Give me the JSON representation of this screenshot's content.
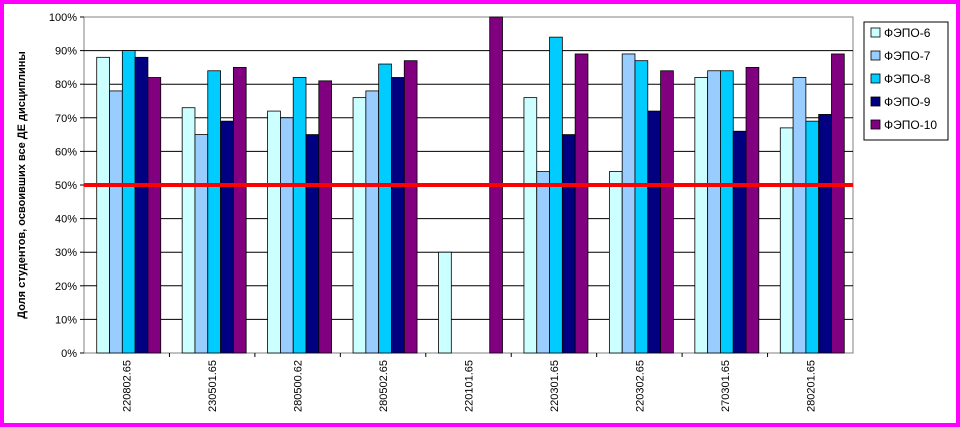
{
  "chart_data": {
    "type": "bar",
    "ylabel": "Доля студентов, освоивших все ДЕ дисциплины",
    "y_ticks": [
      "0%",
      "10%",
      "20%",
      "30%",
      "40%",
      "50%",
      "60%",
      "70%",
      "80%",
      "90%",
      "100%"
    ],
    "ylim": [
      0,
      100
    ],
    "grid": true,
    "legend_position": "right",
    "categories": [
      "220802.65",
      "230501.65",
      "280500.62",
      "280502.65",
      "220101.65",
      "220301.65",
      "220302.65",
      "270301.65",
      "280201.65"
    ],
    "series": [
      {
        "name": "ФЭПО-6",
        "color": "#ccffff",
        "values": [
          88,
          73,
          72,
          76,
          30,
          76,
          54,
          82,
          67
        ]
      },
      {
        "name": "ФЭПО-7",
        "color": "#99ccff",
        "values": [
          78,
          65,
          70,
          78,
          null,
          54,
          89,
          84,
          82
        ]
      },
      {
        "name": "ФЭПО-8",
        "color": "#00ccff",
        "values": [
          90,
          84,
          82,
          86,
          null,
          94,
          87,
          84,
          69
        ]
      },
      {
        "name": "ФЭПО-9",
        "color": "#000080",
        "values": [
          88,
          69,
          65,
          82,
          null,
          65,
          72,
          66,
          71
        ]
      },
      {
        "name": "ФЭПО-10",
        "color": "#800080",
        "values": [
          82,
          85,
          81,
          87,
          100,
          89,
          84,
          85,
          89
        ]
      }
    ],
    "threshold": {
      "value": 50,
      "color": "#ff0000"
    }
  }
}
